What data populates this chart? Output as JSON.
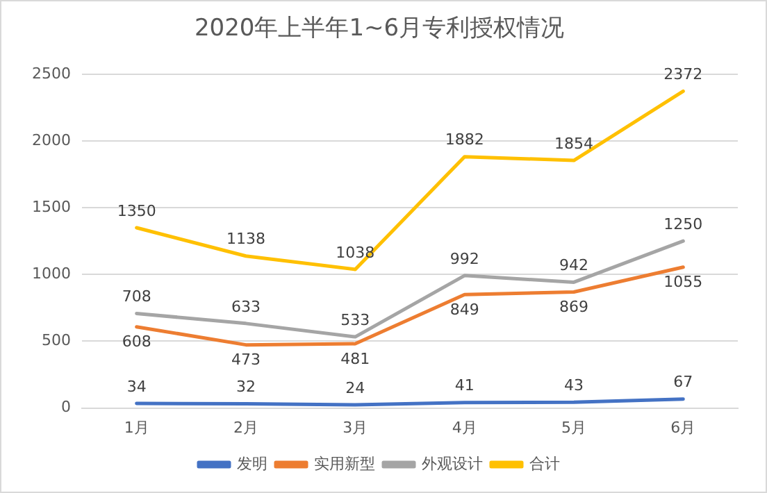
{
  "chart_data": {
    "type": "line",
    "title": "2020年上半年1~6月专利授权情况",
    "categories": [
      "1月",
      "2月",
      "3月",
      "4月",
      "5月",
      "6月"
    ],
    "series": [
      {
        "name": "发明",
        "color": "#4472c4",
        "values": [
          34,
          32,
          24,
          41,
          43,
          67
        ]
      },
      {
        "name": "实用新型",
        "color": "#ed7d31",
        "values": [
          608,
          473,
          481,
          849,
          869,
          1055
        ]
      },
      {
        "name": "外观设计",
        "color": "#a5a5a5",
        "values": [
          708,
          633,
          533,
          992,
          942,
          1250
        ]
      },
      {
        "name": "合计",
        "color": "#ffc000",
        "values": [
          1350,
          1138,
          1038,
          1882,
          1854,
          2372
        ]
      }
    ],
    "ylim": [
      0,
      2500
    ],
    "yticks": [
      0,
      500,
      1000,
      1500,
      2000,
      2500
    ],
    "grid": "y",
    "legend": "bottom",
    "marker": "none",
    "line_style": "solid",
    "data_labels": true
  }
}
